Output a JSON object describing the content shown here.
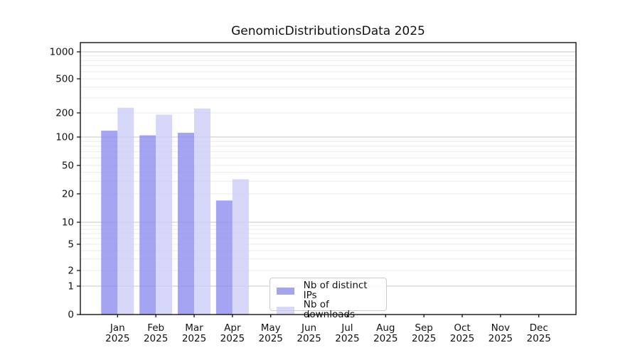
{
  "title": "GenomicDistributionsData 2025",
  "chart_data": {
    "type": "bar",
    "title": "GenomicDistributionsData 2025",
    "categories": [
      "Jan 2025",
      "Feb 2025",
      "Mar 2025",
      "Apr 2025",
      "May 2025",
      "Jun 2025",
      "Jul 2025",
      "Aug 2025",
      "Sep 2025",
      "Oct 2025",
      "Nov 2025",
      "Dec 2025"
    ],
    "series": [
      {
        "name": "Nb of distinct IPs",
        "color": "#8a8af0",
        "values": [
          120,
          105,
          113,
          17,
          0,
          0,
          0,
          0,
          0,
          0,
          0,
          0
        ]
      },
      {
        "name": "Nb of downloads",
        "color": "#ccccf8",
        "values": [
          230,
          190,
          225,
          32,
          0,
          0,
          0,
          0,
          0,
          0,
          0,
          0
        ]
      }
    ],
    "yscale": "symlog",
    "y_ticks": [
      0,
      1,
      2,
      5,
      10,
      20,
      50,
      100,
      200,
      500,
      1000
    ],
    "y_minor_ticks": [
      3,
      4,
      6,
      7,
      8,
      9,
      30,
      40,
      60,
      70,
      80,
      90,
      300,
      400,
      600,
      700,
      800,
      900
    ],
    "ylim": [
      0,
      1300
    ],
    "xlabel": "",
    "ylabel": "",
    "grid": "both",
    "legend_position": "lower center",
    "colors": {
      "major_grid": "#c7c7c7",
      "minor_grid": "#ebebeb",
      "axis": "#000000",
      "text": "#111111"
    }
  }
}
